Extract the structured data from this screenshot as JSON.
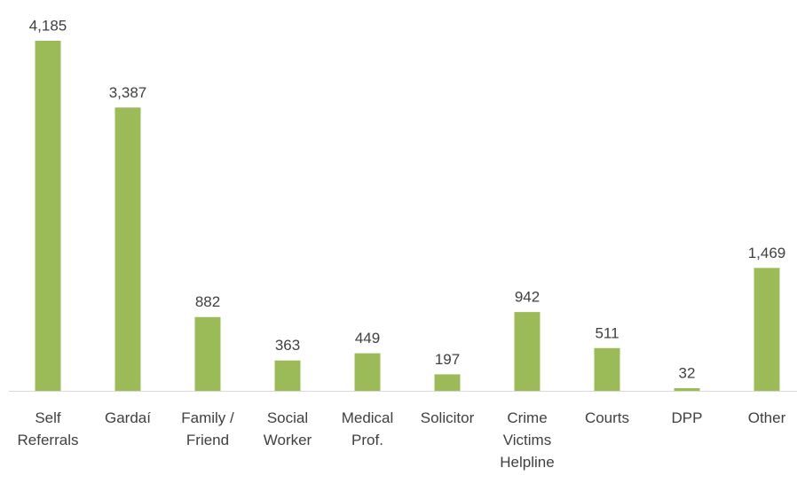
{
  "chart_data": {
    "type": "bar",
    "categories": [
      "Self\nReferrals",
      "Gardaí",
      "Family /\nFriend",
      "Social\nWorker",
      "Medical\nProf.",
      "Solicitor",
      "Crime\nVictims\nHelpline",
      "Courts",
      "DPP",
      "Other"
    ],
    "values": [
      4185,
      3387,
      882,
      363,
      449,
      197,
      942,
      511,
      32,
      1469
    ],
    "value_labels": [
      "4,185",
      "3,387",
      "882",
      "363",
      "449",
      "197",
      "942",
      "511",
      "32",
      "1,469"
    ],
    "color": "#9bbb59"
  }
}
